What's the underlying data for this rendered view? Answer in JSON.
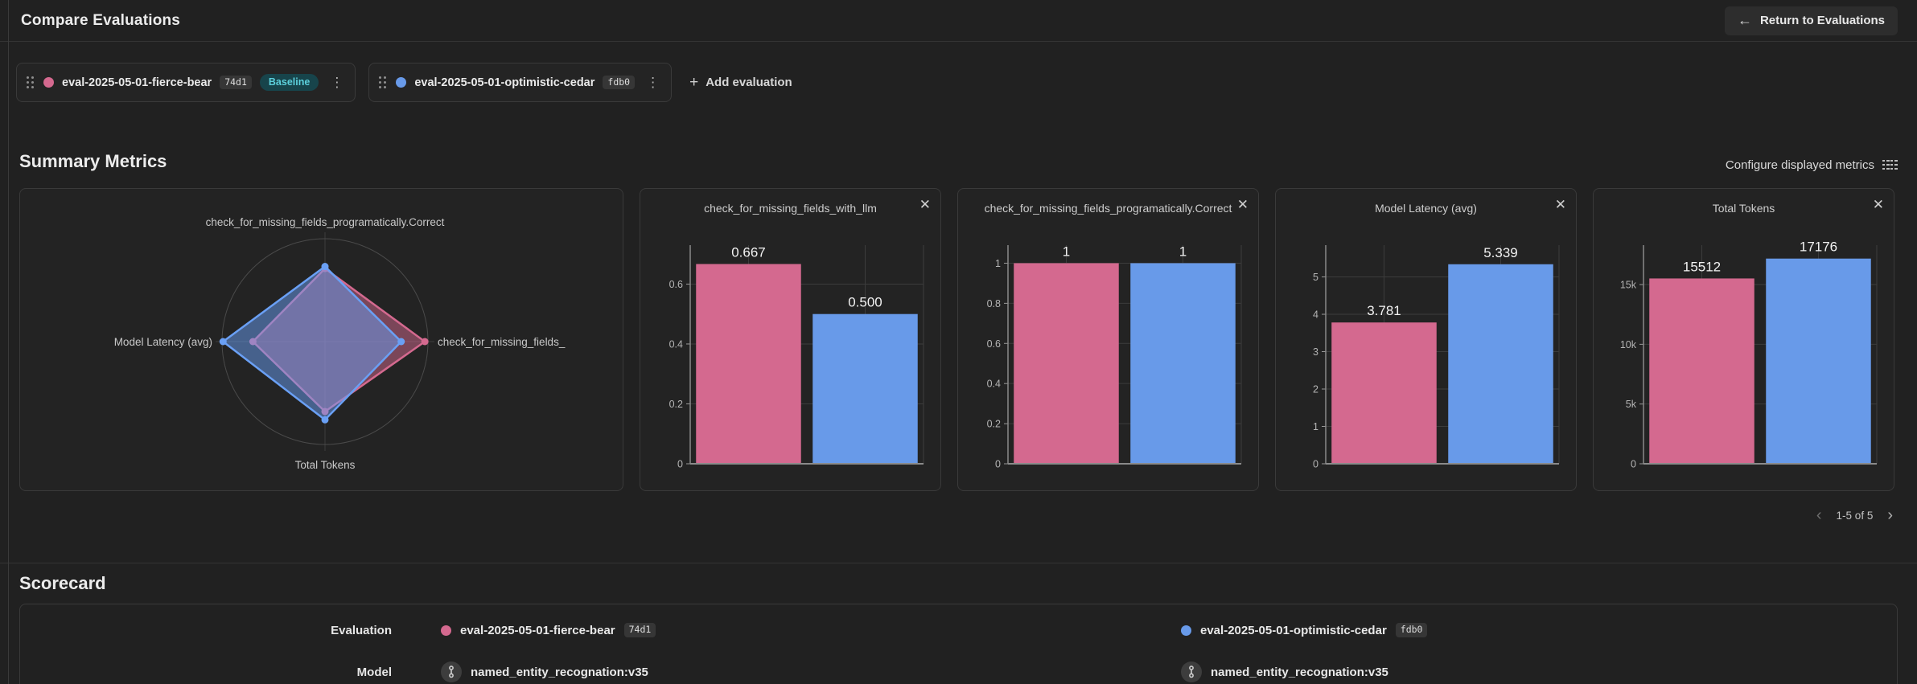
{
  "header": {
    "title": "Compare Evaluations",
    "return_button": "Return to Evaluations"
  },
  "icons": {
    "back": "←",
    "plus": "+",
    "kebab": "⋮",
    "close": "✕",
    "prev": "‹",
    "next": "›",
    "drag_handle": "six-dot-grid",
    "configure": "column-list",
    "model": "registered-model"
  },
  "evaluations": [
    {
      "name": "eval-2025-05-01-fierce-bear",
      "id": "74d1",
      "baseline": "Baseline",
      "color": "#d4698f"
    },
    {
      "name": "eval-2025-05-01-optimistic-cedar",
      "id": "fdb0",
      "color": "#689ae9"
    }
  ],
  "add_evaluation_label": "Add evaluation",
  "summary": {
    "title": "Summary Metrics",
    "configure_label": "Configure displayed metrics",
    "pagination": "1-5 of 5"
  },
  "colors": {
    "pink": "#d4698f",
    "blue": "#689ae9",
    "radar_blue": "#6aa0f5",
    "baseline_bg": "#17444b",
    "baseline_text": "#5cd0dc",
    "card_bg": "#232323",
    "page_bg": "#212121",
    "border": "#3a3a3a"
  },
  "chart_data": [
    {
      "type": "radar",
      "axes": [
        "check_for_missing_fields_programatically.Correct",
        "check_for_missing_fields_",
        "Total Tokens",
        "Model Latency (avg)"
      ],
      "series": [
        {
          "name": "eval-2025-05-01-fierce-bear",
          "color": "#d4698f",
          "values_norm": [
            0.71,
            0.97,
            0.68,
            0.7
          ]
        },
        {
          "name": "eval-2025-05-01-optimistic-cedar",
          "color": "#6aa0f5",
          "values_norm": [
            0.73,
            0.74,
            0.76,
            0.99
          ]
        }
      ],
      "note": "values_norm are radii as fraction of outer ring"
    },
    {
      "type": "bar",
      "title": "check_for_missing_fields_with_llm",
      "ymax": 0.73,
      "yticks": [
        {
          "v": 0,
          "label": "0"
        },
        {
          "v": 0.2,
          "label": "0.2"
        },
        {
          "v": 0.4,
          "label": "0.4"
        },
        {
          "v": 0.6,
          "label": "0.6"
        }
      ],
      "series": [
        {
          "name": "eval-2025-05-01-fierce-bear",
          "color": "#d4698f",
          "value": 0.667,
          "label": "0.667"
        },
        {
          "name": "eval-2025-05-01-optimistic-cedar",
          "color": "#689ae9",
          "value": 0.5,
          "label": "0.500"
        }
      ]
    },
    {
      "type": "bar",
      "title": "check_for_missing_fields_programatically.Correct",
      "clipped": true,
      "ymax": 1.09,
      "yticks": [
        {
          "v": 0,
          "label": "0"
        },
        {
          "v": 0.2,
          "label": "0.2"
        },
        {
          "v": 0.4,
          "label": "0.4"
        },
        {
          "v": 0.6,
          "label": "0.6"
        },
        {
          "v": 0.8,
          "label": "0.8"
        },
        {
          "v": 1,
          "label": "1"
        }
      ],
      "series": [
        {
          "name": "eval-2025-05-01-fierce-bear",
          "color": "#d4698f",
          "value": 1,
          "label": "1"
        },
        {
          "name": "eval-2025-05-01-optimistic-cedar",
          "color": "#689ae9",
          "value": 1,
          "label": "1"
        }
      ]
    },
    {
      "type": "bar",
      "title": "Model Latency (avg)",
      "ymax": 5.85,
      "yticks": [
        {
          "v": 0,
          "label": "0"
        },
        {
          "v": 1,
          "label": "1"
        },
        {
          "v": 2,
          "label": "2"
        },
        {
          "v": 3,
          "label": "3"
        },
        {
          "v": 4,
          "label": "4"
        },
        {
          "v": 5,
          "label": "5"
        }
      ],
      "series": [
        {
          "name": "eval-2025-05-01-fierce-bear",
          "color": "#d4698f",
          "value": 3.781,
          "label": "3.781"
        },
        {
          "name": "eval-2025-05-01-optimistic-cedar",
          "color": "#689ae9",
          "value": 5.339,
          "label": "5.339"
        }
      ]
    },
    {
      "type": "bar",
      "title": "Total Tokens",
      "ymax": 18300,
      "yticks": [
        {
          "v": 0,
          "label": "0"
        },
        {
          "v": 5000,
          "label": "5k"
        },
        {
          "v": 10000,
          "label": "10k"
        },
        {
          "v": 15000,
          "label": "15k"
        }
      ],
      "series": [
        {
          "name": "eval-2025-05-01-fierce-bear",
          "color": "#d4698f",
          "value": 15512,
          "label": "15512"
        },
        {
          "name": "eval-2025-05-01-optimistic-cedar",
          "color": "#689ae9",
          "value": 17176,
          "label": "17176"
        }
      ]
    }
  ],
  "scorecard": {
    "title": "Scorecard",
    "eval_label": "Evaluation",
    "model_label": "Model",
    "model_values": [
      "named_entity_recognation:v35",
      "named_entity_recognation:v35"
    ]
  }
}
